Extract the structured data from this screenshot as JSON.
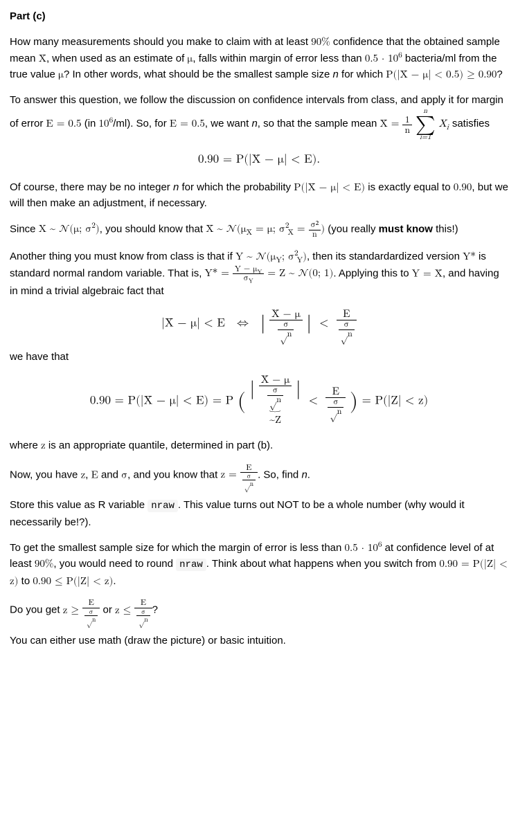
{
  "heading": "Part (c)",
  "p1_a": "How many measurements should you make to claim with at least ",
  "p1_m1": "90%",
  "p1_b": " confidence that the obtained sample mean ",
  "p1_m2": "X̄",
  "p1_c": ", when used as an estimate of ",
  "p1_m3": "μ",
  "p1_d": ", falls within margin of error less than ",
  "p1_m4": "0.5 · 10",
  "p1_m4sup": "6",
  "p1_e": " bacteria/ml from the true value ",
  "p1_m5": "μ",
  "p1_f": "? In other words, what should be the smallest sample size ",
  "p1_m6": "n",
  "p1_g": " for which ",
  "p1_m7": "P(|X̄ − μ| < 0.5) ≥ 0.90",
  "p1_h": "?",
  "p2_a": "To answer this question, we follow the discussion on confidence intervals from class, and apply it for margin of error ",
  "p2_m1": "E = 0.5",
  "p2_b": " (in ",
  "p2_m2": "10",
  "p2_m2sup": "6",
  "p2_c": "/ml). So, for ",
  "p2_m3": "E = 0.5",
  "p2_d": ", we want ",
  "p2_m4": "n",
  "p2_e": ", so that the sample mean ",
  "p2_xbar": "X̄ = ",
  "p2_frac_num": "1",
  "p2_frac_den": "n",
  "p2_sum_top": "n",
  "p2_sum_bot": "i=1",
  "p2_xi": " X",
  "p2_xi_sub": "i",
  "p2_f": " satisfies",
  "eq1": "0.90 = P(|X̄ − μ| < E).",
  "p3_a": "Of course, there may be no integer ",
  "p3_m1": "n",
  "p3_b": " for which the probability ",
  "p3_m2": "P(|X̄ − μ| < E)",
  "p3_c": " is exactly equal to ",
  "p3_m3": "0.90",
  "p3_d": ", but we will then make an adjustment, if necessary.",
  "p4_a": "Since ",
  "p4_m1": "X ~ 𝒩(μ; σ",
  "p4_m1sup": "2",
  "p4_m1b": ")",
  "p4_b": ", you should know that ",
  "p4_m2a": "X̄ ~ 𝒩(μ",
  "p4_m2sub": "X̄",
  "p4_m2b": " = μ; σ",
  "p4_m2sub2": "X̄",
  "p4_m2sup": "2",
  "p4_m2c": " = ",
  "p4_frac_num": "σ²",
  "p4_frac_den": "n",
  "p4_m2d": ")",
  "p4_c": "   (you really ",
  "p4_must": "must know",
  "p4_d": " this!)",
  "p5_a": "Another thing you must know from class is that if ",
  "p5_m1": "Y ~ 𝒩(μ",
  "p5_m1sub": "Y",
  "p5_m1b": "; σ",
  "p5_m1sub2": "Y",
  "p5_m1sup": "2",
  "p5_m1c": ")",
  "p5_b": ", then its standardardized version ",
  "p5_m2": "Y*",
  "p5_c": " is standard normal random variable. That is, ",
  "p5_m3a": "Y* = ",
  "p5_frac_num": "Y − μ",
  "p5_frac_num_sub": "Y",
  "p5_frac_den": "σ",
  "p5_frac_den_sub": "Y",
  "p5_m3b": " = Z ~ 𝒩(0; 1)",
  "p5_d": ". Applying this to ",
  "p5_m4": "Y = X̄",
  "p5_e": ", and having in mind a trivial algebraic fact that",
  "eq2_lhs": "|X̄ − μ| < E",
  "eq2_iff": "⇔",
  "eq2_mid_num": "X̄ − μ",
  "eq2_den_top": "σ",
  "eq2_den_bot": "√n",
  "eq2_lt": "<",
  "eq2_rhs_num": "E",
  "p6": "we have that",
  "eq3_a": "0.90 = P(|X̄ − μ| < E) = P",
  "eq3_bigl": "(",
  "eq3_bar": "|",
  "eq3_num1": "X̄ − μ",
  "eq3_lt": "<",
  "eq3_num2": "E",
  "eq3_bigr": ")",
  "eq3_b": " = P(|Z| < z)",
  "eq3_ub": "~Z",
  "p7_a": "where ",
  "p7_m1": "z",
  "p7_b": " is an appropriate quantile, determined in part (b).",
  "p8_a": "Now, you have ",
  "p8_m1": "z",
  "p8_b": ", ",
  "p8_m2": "E",
  "p8_c": " and ",
  "p8_m3": "σ",
  "p8_d": ", and you know that ",
  "p8_m4a": "z = ",
  "p8_frac_num": "E",
  "p8_e": ". So, find ",
  "p8_m5": "n",
  "p8_f": ".",
  "p9_a": "Store this value as R variable ",
  "p9_code": "nraw",
  "p9_b": ". This value turns out NOT to be a whole number (why would it necessarily be!?).",
  "p10_a": "To get the smallest sample size for which the margin of error is less than ",
  "p10_m1": "0.5 · 10",
  "p10_m1sup": "6",
  "p10_b": " at confidence level of at least ",
  "p10_m2": "90%",
  "p10_c": ", you would need to round ",
  "p10_code": "nraw",
  "p10_d": ". Think about what happens when you switch from  ",
  "p10_m3": "0.90 = P(|Z| < z)",
  "p10_e": "  to  ",
  "p10_m4": "0.90 ≤ P(|Z| < z)",
  "p10_f": ".",
  "p11_a": "Do you get ",
  "p11_m1a": "z ≥ ",
  "p11_frac_num": "E",
  "p11_b": " or ",
  "p11_m2a": "z ≤ ",
  "p11_c": "?",
  "p12": "You can either use math (draw the picture) or basic intuition."
}
